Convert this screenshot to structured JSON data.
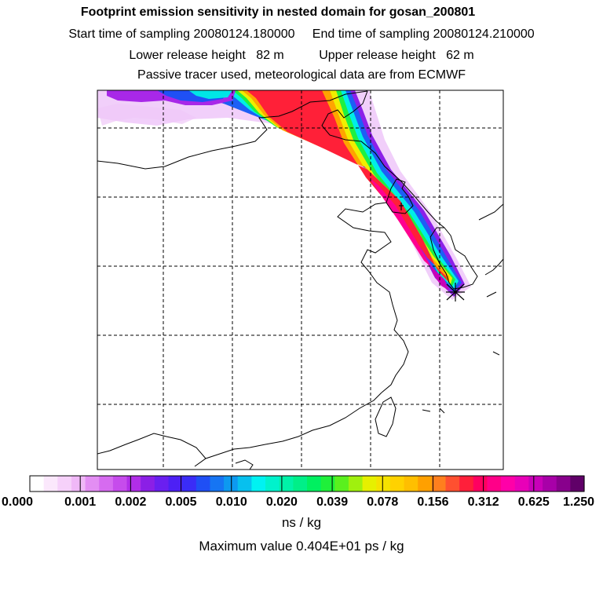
{
  "titles": {
    "line1": "Footprint emission sensitivity in nested domain for gosan_200801",
    "start": "Start time of sampling 20080124.180000",
    "end": "End time of sampling 20080124.210000",
    "lower": "Lower release height   82 m",
    "upper": "Upper release height   62 m",
    "line4": "Passive tracer used, meteorological data are from ECMWF"
  },
  "chart_data": {
    "type": "heatmap",
    "title": "Footprint emission sensitivity in nested domain for gosan_200801",
    "legend": {
      "ticks": [
        "0.000",
        "0.001",
        "0.002",
        "0.005",
        "0.010",
        "0.020",
        "0.039",
        "0.078",
        "0.156",
        "0.312",
        "0.625",
        "1.250"
      ],
      "unit": "ns / kg",
      "colors": [
        "#ffffff",
        "#fbe8fc",
        "#f6d1fa",
        "#f0b8f7",
        "#e38ef3",
        "#d66bf0",
        "#c64cec",
        "#b12ee8",
        "#8b1fe6",
        "#6a1ff0",
        "#4d20f5",
        "#3a2cf7",
        "#1f4ff5",
        "#1675f3",
        "#0d99f0",
        "#07c0ee",
        "#00f2f2",
        "#00f2cc",
        "#00f2a8",
        "#00ef88",
        "#00f060",
        "#1ff03a",
        "#5af01e",
        "#a0f00e",
        "#e6f000",
        "#f5e200",
        "#ffd200",
        "#ffbf00",
        "#ffa000",
        "#ff7f1e",
        "#ff5030",
        "#ff1f3a",
        "#ff0060",
        "#ff0088",
        "#ff00a8",
        "#e800b8",
        "#c800b8",
        "#a800a8",
        "#88008c",
        "#600068"
      ]
    },
    "max_value_text": "Maximum value  0.404E+01 ps / kg",
    "receptor": "Gosan"
  }
}
